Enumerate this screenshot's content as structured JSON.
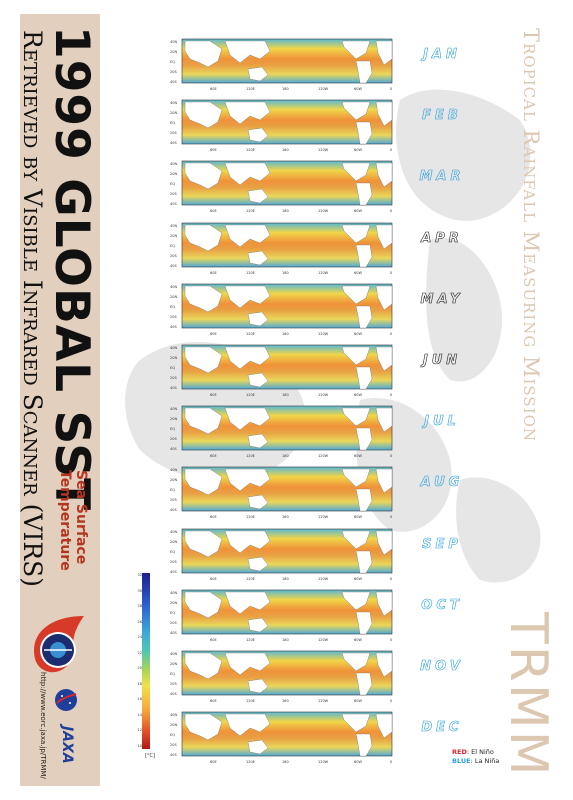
{
  "poster": {
    "title_line1": "1999 GLOBAL SST",
    "title_line2": "Retrieved by Visible Infrared Scanner (VIRS)",
    "subtitle_line1": "Sea Surface",
    "subtitle_line2": "Temperature",
    "url": "http://www.eorc.jaxa.jp/TRMM/",
    "right_title": "Tropical Rainfall Measuring Mission",
    "right_acronym": "TRMM"
  },
  "months": [
    {
      "label": "JAN",
      "color": "#2a9fe0"
    },
    {
      "label": "FEB",
      "color": "#2a9fe0"
    },
    {
      "label": "MAR",
      "color": "#2a9fe0"
    },
    {
      "label": "APR",
      "color": "#222222"
    },
    {
      "label": "MAY",
      "color": "#222222"
    },
    {
      "label": "JUN",
      "color": "#222222"
    },
    {
      "label": "JUL",
      "color": "#2a9fe0"
    },
    {
      "label": "AUG",
      "color": "#2a9fe0"
    },
    {
      "label": "SEP",
      "color": "#2a9fe0"
    },
    {
      "label": "OCT",
      "color": "#2a9fe0"
    },
    {
      "label": "NOV",
      "color": "#2a9fe0"
    },
    {
      "label": "DEC",
      "color": "#2a9fe0"
    }
  ],
  "legend": {
    "red_label": "RED",
    "red_text": ": El Niño",
    "blue_label": "BLUE",
    "blue_text": ": La Niña",
    "red_color": "#d8262e",
    "blue_color": "#2a9fe0"
  },
  "colorbar": {
    "ticks": [
      "32",
      "30",
      "28",
      "26",
      "24",
      "22",
      "20",
      "18",
      "16",
      "14",
      "12",
      "10"
    ],
    "unit": "[°C]"
  },
  "map_axes": {
    "x_ticks": [
      "60E",
      "120E",
      "180",
      "120W",
      "60W",
      "0"
    ],
    "y_ticks": [
      "40N",
      "20N",
      "EQ",
      "20S",
      "40S"
    ]
  },
  "colors": {
    "band": "#e3cfbd",
    "accent_red": "#b5361f",
    "watermark": "#dcc7b1"
  }
}
